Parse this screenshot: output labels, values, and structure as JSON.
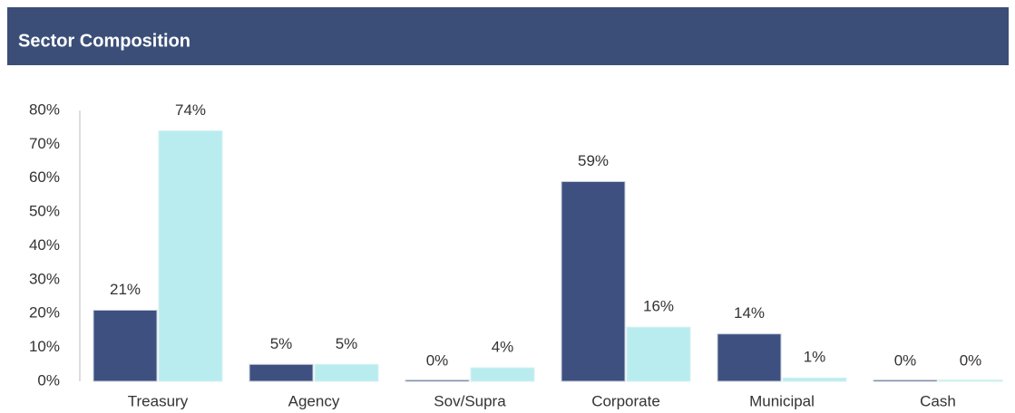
{
  "chart_data": {
    "type": "bar",
    "title": "Sector Composition",
    "categories": [
      "Treasury",
      "Agency",
      "Sov/Supra",
      "Corporate",
      "Municipal",
      "Cash"
    ],
    "series": [
      {
        "color": "#3d5080",
        "values": [
          21,
          5,
          0,
          59,
          14,
          0
        ],
        "value_labels": [
          "21%",
          "5%",
          "0%",
          "59%",
          "14%",
          "0%"
        ]
      },
      {
        "color": "#b9ecee",
        "values": [
          74,
          5,
          4,
          16,
          1,
          0
        ],
        "value_labels": [
          "74%",
          "5%",
          "4%",
          "16%",
          "1%",
          "0%"
        ]
      }
    ],
    "ylim": [
      0,
      80
    ],
    "yticks": [
      {
        "value": 0,
        "label": "0%"
      },
      {
        "value": 10,
        "label": "10%"
      },
      {
        "value": 20,
        "label": "20%"
      },
      {
        "value": 30,
        "label": "30%"
      },
      {
        "value": 40,
        "label": "40%"
      },
      {
        "value": 50,
        "label": "50%"
      },
      {
        "value": 60,
        "label": "60%"
      },
      {
        "value": 70,
        "label": "70%"
      },
      {
        "value": 80,
        "label": "80%"
      }
    ],
    "grid": false
  }
}
